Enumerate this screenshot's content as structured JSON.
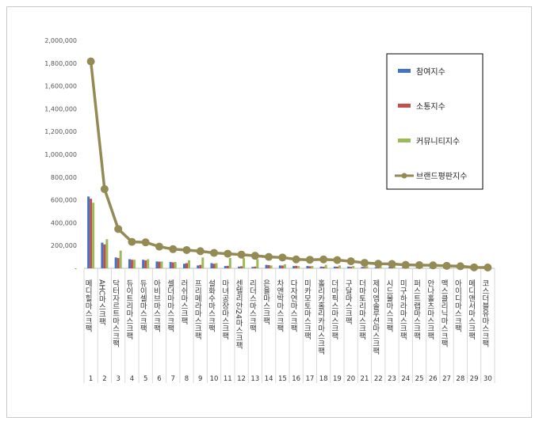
{
  "chart_data": {
    "type": "bar",
    "title": "",
    "xlabel": "",
    "ylabel": "",
    "ylim": [
      0,
      2000000
    ],
    "yticks": [
      "-",
      "200,000",
      "400,000",
      "600,000",
      "800,000",
      "1,000,000",
      "1,200,000",
      "1,400,000",
      "1,600,000",
      "1,800,000",
      "2,000,000"
    ],
    "categories": [
      "메디힐마스크팩",
      "AHC마스크팩",
      "닥터자르트마스크팩",
      "듀이트리마스크팩",
      "듀이셀마스크팩",
      "아비브마스크팩",
      "셀더마마스크팩",
      "러쉬마스크팩",
      "프리메라마스크팩",
      "설화수마스크팩",
      "마녀공장마스크팩",
      "센텔리안24마스크팩",
      "리더스마스크팩",
      "은율마스크팩",
      "차앤박마스크팩",
      "다자연마스크팩",
      "미카모토마스크팩",
      "홀리카홀리카마스크팩",
      "더마픽스마스크팩",
      "구달마스크팩",
      "더마토리마스크팩",
      "제이엠솔루션마스크팩",
      "시드물마스크팩",
      "미구하라마스크팩",
      "퍼스트랩마스크팩",
      "안나홀츠마스크팩",
      "맥스클리닉마스크팩",
      "아이디마스크팩",
      "메디앤서마스크팩",
      "코스더블유마스크팩"
    ],
    "indices": [
      "1",
      "2",
      "3",
      "4",
      "5",
      "6",
      "7",
      "8",
      "9",
      "10",
      "11",
      "12",
      "13",
      "14",
      "15",
      "16",
      "17",
      "18",
      "19",
      "20",
      "21",
      "22",
      "23",
      "24",
      "25",
      "26",
      "27",
      "28",
      "29",
      "30"
    ],
    "legend_position": "top-right",
    "series": [
      {
        "name": "참여지수",
        "type": "bar",
        "color": "#4472c4",
        "values": [
          630000,
          225000,
          95000,
          80000,
          75000,
          60000,
          55000,
          40000,
          25000,
          45000,
          20000,
          15000,
          12000,
          30000,
          25000,
          20000,
          20000,
          15000,
          15000,
          15000,
          12000,
          10000,
          10000,
          8000,
          8000,
          7000,
          8000,
          6000,
          4000,
          4000
        ]
      },
      {
        "name": "소통지수",
        "type": "bar",
        "color": "#c0504d",
        "values": [
          610000,
          210000,
          90000,
          75000,
          70000,
          58000,
          52000,
          45000,
          30000,
          40000,
          22000,
          18000,
          15000,
          28000,
          24000,
          22000,
          18000,
          14000,
          14000,
          13000,
          11000,
          9000,
          9000,
          8000,
          7000,
          7000,
          7000,
          5000,
          4000,
          3000
        ]
      },
      {
        "name": "커뮤니티지수",
        "type": "bar",
        "color": "#9bbb59",
        "values": [
          575000,
          255000,
          155000,
          75000,
          80000,
          60000,
          55000,
          70000,
          95000,
          45000,
          90000,
          90000,
          80000,
          25000,
          35000,
          20000,
          20000,
          30000,
          25000,
          20000,
          18000,
          15000,
          15000,
          12000,
          12000,
          10000,
          8000,
          8000,
          5000,
          5000
        ]
      },
      {
        "name": "브랜드평판지수",
        "type": "line",
        "color": "#948a54",
        "values": [
          1815000,
          695000,
          345000,
          232000,
          228000,
          190000,
          168000,
          160000,
          150000,
          135000,
          128000,
          120000,
          110000,
          100000,
          95000,
          78000,
          75000,
          78000,
          72000,
          62000,
          48000,
          40000,
          38000,
          30000,
          28000,
          26000,
          22000,
          18000,
          8000,
          7000
        ]
      }
    ]
  }
}
